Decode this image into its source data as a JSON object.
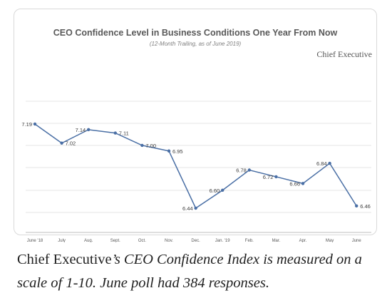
{
  "chart_data": {
    "type": "line",
    "title": "CEO Confidence Level in Business Conditions One Year From Now",
    "subtitle": "(12-Month Trailing, as of June 2019)",
    "categories": [
      "June '18",
      "July",
      "Aug.",
      "Sept.",
      "Oct.",
      "Nov.",
      "Dec.",
      "Jan. '19",
      "Feb.",
      "Mar.",
      "Apr.",
      "May",
      "June"
    ],
    "values": [
      7.19,
      7.02,
      7.14,
      7.11,
      7.0,
      6.95,
      6.44,
      6.6,
      6.78,
      6.72,
      6.66,
      6.84,
      6.46
    ],
    "value_labels": [
      "7.19",
      "7.02",
      "7.14",
      "7.11",
      "7.00",
      "6.95",
      "6.44",
      "6.60",
      "6.78",
      "6.72",
      "6.66",
      "6.84",
      "6.46"
    ],
    "ylim": [
      6.3,
      7.3
    ],
    "grid": true,
    "line_color": "#4a6fa5"
  },
  "brand": "Chief Executive",
  "caption": {
    "part1": "Chief Executive",
    "part2": "’s CEO Confidence Index is measured on a scale of 1-10. June poll had 384 responses."
  }
}
